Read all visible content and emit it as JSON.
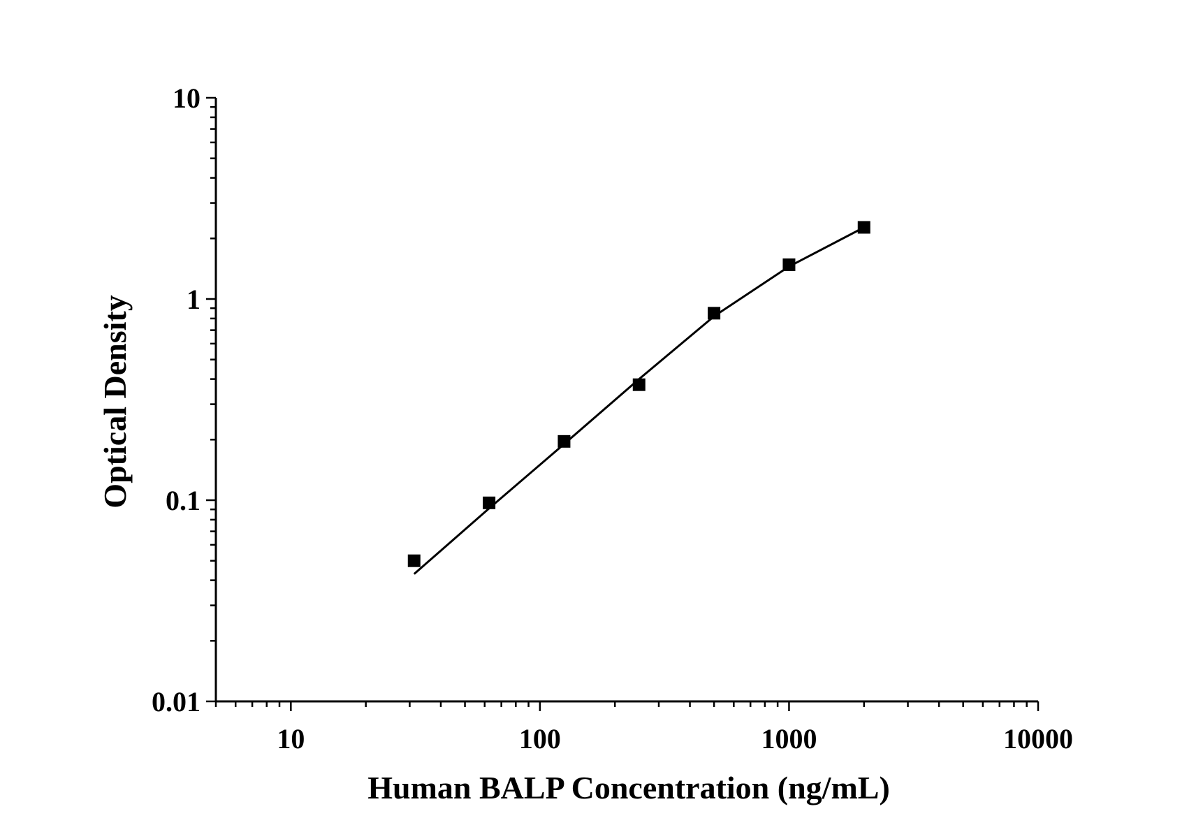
{
  "chart_data": {
    "type": "scatter",
    "xlabel": "Human BALP Concentration (ng/mL)",
    "ylabel": "Optical Density",
    "x_scale": "log",
    "y_scale": "log",
    "xlim": [
      5,
      10000
    ],
    "ylim": [
      0.01,
      10
    ],
    "x_ticks": [
      10,
      100,
      1000,
      10000
    ],
    "x_tick_labels": [
      "10",
      "100",
      "1000",
      "10000"
    ],
    "y_ticks": [
      0.01,
      0.1,
      1,
      10
    ],
    "y_tick_labels": [
      "0.01",
      "0.1",
      "1",
      "10"
    ],
    "grid": false,
    "legend": "none",
    "series": [
      {
        "marker": "square",
        "x": [
          31.25,
          62.5,
          125,
          250,
          500,
          1000,
          2000
        ],
        "y": [
          0.05,
          0.097,
          0.196,
          0.375,
          0.85,
          1.48,
          2.27
        ]
      }
    ],
    "fit_line": {
      "x": [
        31.25,
        62.5,
        125,
        250,
        500,
        1000,
        2000
      ],
      "y": [
        0.043,
        0.091,
        0.19,
        0.4,
        0.82,
        1.45,
        2.27
      ]
    },
    "colors": {
      "marker": "#000000",
      "line": "#000000",
      "axis": "#000000"
    }
  }
}
